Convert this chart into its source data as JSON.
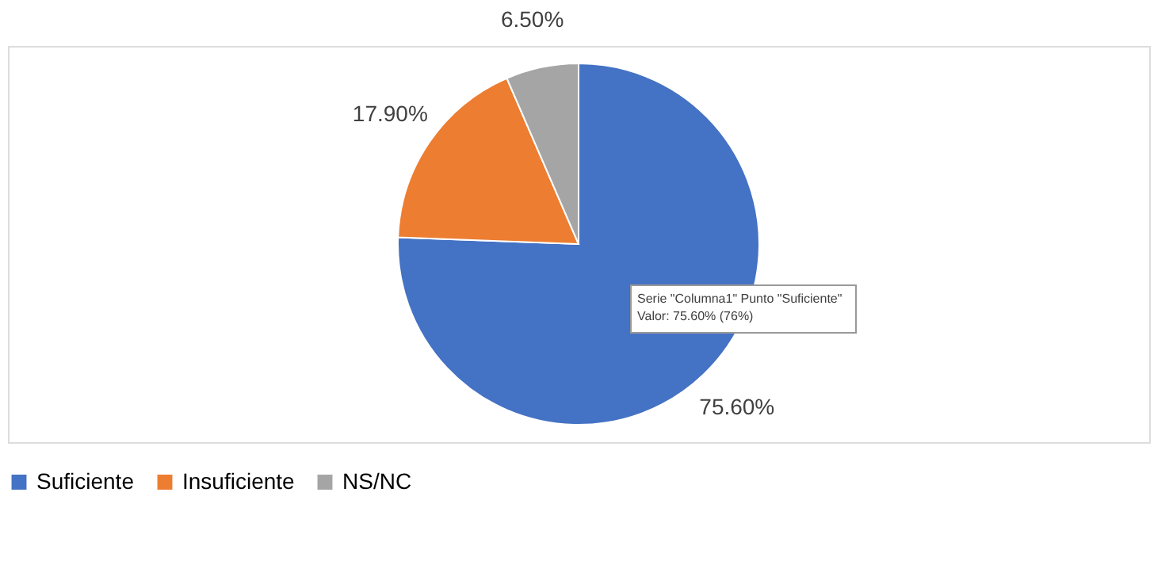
{
  "chart_data": {
    "type": "pie",
    "categories": [
      "Suficiente",
      "Insuficiente",
      "NS/NC"
    ],
    "values": [
      75.6,
      17.9,
      6.5
    ],
    "colors": [
      "#4472c4",
      "#ed7d31",
      "#a5a5a5"
    ],
    "value_labels": [
      "75.60%",
      "17.90%",
      "6.50%"
    ],
    "legend": "bottom",
    "annotations": [
      "Serie \"Columna1\" Punto \"Suficiente\"",
      "Valor: 75.60% (76%)"
    ]
  }
}
